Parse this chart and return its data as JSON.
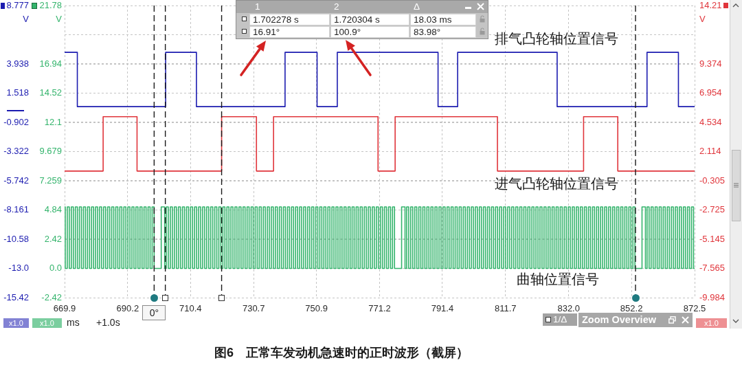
{
  "chart_data": {
    "type": "step",
    "title": "图6　正常车发动机急速时的正时波形（截屏）",
    "xlabel": "ms",
    "ylabel": "V",
    "y2label": "V",
    "y3label": "V",
    "xlim": [
      669.9,
      872.5
    ],
    "xticks": [
      669.9,
      690.2,
      710.4,
      730.7,
      750.9,
      771.2,
      791.4,
      811.7,
      {
        "value": 832.0,
        "label": "832.0"
      },
      852.2,
      872.5
    ],
    "ylim": [
      -15.42,
      8.777
    ],
    "yticks": [
      -15.42,
      {
        "value": -13.0,
        "label": "-13.0"
      },
      -10.58,
      -8.161,
      -5.742,
      -3.322,
      -0.902,
      1.518,
      3.938,
      {
        "value": 6.358,
        "label": null
      },
      8.777
    ],
    "y2lim": [
      -2.42,
      21.78
    ],
    "y2ticks": [
      -2.42,
      {
        "value": 0.0,
        "label": "0.0"
      },
      2.42,
      4.84,
      7.259,
      9.679,
      12.1,
      14.52,
      16.94,
      {
        "value": 19.36,
        "label": null
      },
      21.78
    ],
    "y3lim": [
      -9.984,
      14.21
    ],
    "y3ticks": [
      -9.984,
      -7.565,
      -5.145,
      -2.725,
      -0.305,
      2.114,
      4.534,
      6.954,
      9.374,
      {
        "value": 11.79,
        "label": null
      },
      14.21
    ],
    "grid": true,
    "series": [
      {
        "name": "排气凸轮轴位置信号",
        "color": "#1c1cb0",
        "x": [
          669.9,
          674.0,
          702.4,
          712.3,
          740.8,
          751.1,
          757.6,
          790.0,
          796.3,
          828.3,
          857.2,
          867.3,
          872.5
        ],
        "values": [
          4.9,
          0.4,
          4.9,
          0.4,
          4.9,
          0.4,
          4.9,
          0.4,
          4.9,
          0.4,
          4.9,
          0.4,
          0.4
        ]
      },
      {
        "name": "进气凸轮轴位置信号",
        "color": "#e0353b",
        "axis": "y3",
        "x": [
          669.9,
          682.3,
          693.2,
          720.4,
          731.6,
          737.1,
          770.7,
          776.2,
          809.1,
          836.8,
          847.8,
          872.5
        ],
        "values": [
          0.5,
          5.0,
          0.5,
          5.0,
          0.5,
          5.0,
          0.5,
          5.0,
          0.5,
          5.0,
          0.5,
          0.5
        ]
      },
      {
        "name": "曲轴位置信号",
        "color": "#34b46c",
        "axis": "y2",
        "x": [
          669.9,
          670.12,
          670.77,
          671.42,
          672.07,
          672.72,
          673.37,
          674.02,
          674.67,
          675.32,
          675.97,
          676.62,
          677.27,
          677.92,
          678.57,
          679.22,
          679.86,
          680.51,
          681.16,
          681.81,
          682.46,
          683.11,
          683.76,
          684.41,
          685.06,
          685.71,
          686.36,
          687.01,
          687.66,
          688.31,
          688.96,
          689.61,
          690.26,
          690.91,
          691.56,
          692.21,
          692.85,
          693.5,
          694.15,
          694.8,
          695.45,
          696.1,
          696.75,
          697.4,
          698.05,
          698.7,
          700.98,
          702.08,
          702.61,
          703.26,
          703.91,
          704.56,
          705.21,
          705.86,
          706.51,
          707.16,
          707.81,
          708.46,
          709.11,
          709.76,
          710.4,
          711.05,
          711.7,
          712.35,
          713.0,
          713.65,
          714.3,
          714.95,
          715.6,
          716.25,
          716.9,
          717.55,
          718.2,
          718.85,
          719.5,
          720.15,
          720.8,
          721.45,
          722.1,
          722.75,
          723.39,
          724.04,
          724.69,
          725.34,
          725.99,
          726.64,
          727.29,
          727.94,
          728.59,
          729.24,
          729.89,
          730.54,
          731.19,
          731.84,
          732.49,
          733.14,
          733.79,
          734.44,
          735.09,
          735.74,
          736.38,
          737.03,
          737.68,
          738.33,
          738.98,
          739.63,
          740.28,
          740.93,
          741.58,
          742.23,
          742.88,
          743.53,
          744.18,
          744.83,
          745.48,
          746.13,
          746.78,
          747.43,
          748.08,
          748.73,
          749.37,
          750.02,
          750.67,
          751.32,
          751.97,
          752.62,
          753.27,
          753.92,
          754.57,
          755.22,
          755.87,
          756.52,
          757.17,
          757.82,
          758.47,
          759.12,
          759.77,
          760.42,
          761.07,
          761.72,
          762.36,
          763.01,
          763.66,
          764.31,
          764.96,
          765.61,
          766.26,
          766.91,
          767.56,
          768.21,
          768.86,
          769.51,
          770.16,
          770.81,
          771.46,
          772.11,
          772.76,
          773.41,
          774.06,
          774.71,
          775.35,
          776.0,
          778.28,
          779.38,
          779.91,
          780.56,
          781.21,
          781.86,
          782.51,
          783.16,
          783.81,
          784.46,
          785.11,
          785.76,
          786.41,
          787.06,
          787.71,
          788.36,
          789.01,
          789.66,
          790.31,
          790.96,
          791.61,
          792.26,
          792.9,
          793.55,
          794.2,
          794.85,
          795.5,
          796.15,
          796.8,
          797.45,
          798.1,
          798.75,
          799.4,
          800.05,
          800.7,
          801.35,
          802.0,
          802.65,
          803.3,
          803.95,
          804.6,
          805.25,
          805.89,
          806.54,
          807.19,
          807.84,
          808.49,
          809.14,
          809.79,
          810.44,
          811.09,
          811.74,
          812.39,
          813.04,
          813.69,
          814.34,
          814.99,
          815.64,
          816.29,
          816.94,
          817.59,
          818.24,
          818.88,
          819.53,
          820.18,
          820.83,
          821.48,
          822.13,
          822.78,
          823.43,
          824.08,
          824.73,
          825.38,
          826.03,
          826.68,
          827.33,
          827.98,
          828.63,
          829.28,
          829.93,
          830.58,
          831.23,
          831.87,
          832.52,
          833.17,
          833.82,
          834.47,
          835.12,
          835.77,
          836.42,
          837.07,
          837.72,
          838.37,
          839.02,
          839.67,
          840.32,
          840.97,
          841.62,
          842.27,
          842.92,
          843.57,
          844.22,
          844.86,
          845.51,
          846.16,
          846.81,
          847.46,
          848.11,
          848.76,
          849.41,
          850.06,
          850.71,
          851.36,
          852.01,
          852.66,
          853.31,
          855.59,
          856.69,
          857.22,
          857.87,
          858.52,
          859.17,
          859.82,
          860.47,
          861.12,
          861.77,
          862.41,
          863.06,
          863.71,
          864.36,
          865.01,
          865.66,
          866.31,
          866.96,
          867.61,
          868.26,
          868.91,
          869.56,
          870.21,
          870.86,
          871.51,
          872.16,
          872.5
        ],
        "values": [
          5.1,
          0,
          5.1,
          0,
          5.1,
          0,
          5.1,
          0,
          5.1,
          0,
          5.1,
          0,
          5.1,
          0,
          5.1,
          0,
          5.1,
          0,
          5.1,
          0,
          5.1,
          0,
          5.1,
          0,
          5.1,
          0,
          5.1,
          0,
          5.1,
          0,
          5.1,
          0,
          5.1,
          0,
          5.1,
          0,
          5.1,
          0,
          5.1,
          0,
          5.1,
          0,
          5.1,
          0,
          5.1,
          0,
          5.1,
          0,
          5.1,
          0,
          5.1,
          0,
          5.1,
          0,
          5.1,
          0,
          5.1,
          0,
          5.1,
          0,
          5.1,
          0,
          5.1,
          0,
          5.1,
          0,
          5.1,
          0,
          5.1,
          0,
          5.1,
          0,
          5.1,
          0,
          5.1,
          0,
          5.1,
          0,
          5.1,
          0,
          5.1,
          0,
          5.1,
          0,
          5.1,
          0,
          5.1,
          0,
          5.1,
          0,
          5.1,
          0,
          5.1,
          0,
          5.1,
          0,
          5.1,
          0,
          5.1,
          0,
          5.1,
          0,
          5.1,
          0,
          5.1,
          0,
          5.1,
          0,
          5.1,
          0,
          5.1,
          0,
          5.1,
          0,
          5.1,
          0,
          5.1,
          0,
          5.1,
          0,
          5.1,
          0,
          5.1,
          0,
          5.1,
          0,
          5.1,
          0,
          5.1,
          0,
          5.1,
          0,
          5.1,
          0,
          5.1,
          0,
          5.1,
          0,
          5.1,
          0,
          5.1,
          0,
          5.1,
          0,
          5.1,
          0,
          5.1,
          0,
          5.1,
          0,
          5.1,
          0,
          5.1,
          0,
          5.1,
          0,
          5.1,
          0,
          5.1,
          0,
          5.1,
          0,
          5.1,
          0,
          5.1,
          0,
          5.1,
          0,
          5.1,
          0,
          5.1,
          0,
          5.1,
          0,
          5.1,
          0,
          5.1,
          0,
          5.1,
          0,
          5.1,
          0,
          5.1,
          0,
          5.1,
          0,
          5.1,
          0,
          5.1,
          0,
          5.1,
          0,
          5.1,
          0,
          5.1,
          0,
          5.1,
          0,
          5.1,
          0,
          5.1,
          0,
          5.1,
          0,
          5.1,
          0,
          5.1,
          0,
          5.1,
          0,
          5.1,
          0,
          5.1,
          0,
          5.1,
          0,
          5.1,
          0,
          5.1,
          0,
          5.1,
          0,
          5.1,
          0,
          5.1,
          0,
          5.1,
          0,
          5.1,
          0,
          5.1,
          0,
          5.1,
          0,
          5.1,
          0,
          5.1,
          0,
          5.1,
          0,
          5.1,
          0,
          5.1,
          0,
          5.1,
          0,
          5.1,
          0,
          5.1,
          0,
          5.1,
          0,
          5.1,
          0,
          5.1,
          0,
          5.1,
          0,
          5.1,
          0,
          5.1,
          0,
          5.1,
          0,
          5.1,
          0,
          5.1,
          0,
          5.1,
          0,
          5.1,
          0,
          5.1,
          0,
          5.1,
          0,
          5.1,
          0,
          5.1,
          0,
          5.1,
          0,
          5.1,
          0,
          5.1,
          0,
          5.1,
          0,
          5.1,
          0,
          5.1,
          0,
          5.1,
          0,
          5.1,
          0,
          5.1,
          0,
          5.1,
          0,
          5.1,
          0,
          5.1,
          0,
          0
        ]
      }
    ],
    "ref_lines": [
      {
        "axis": "x",
        "value": 698.7,
        "color": "#1a1a1a",
        "line_style": "dashed"
      },
      {
        "axis": "x",
        "value": 702.3,
        "color": "#1a1a1a",
        "line_style": "dashed"
      },
      {
        "axis": "x",
        "value": 720.4,
        "color": "#1a1a1a",
        "line_style": "dashed"
      },
      {
        "axis": "x",
        "value": 853.5,
        "color": "#1a1a1a",
        "line_style": "dashed"
      }
    ],
    "annotations": [
      "1",
      "2",
      "Δ",
      "1.702278 s",
      "1.720304 s",
      "18.03 ms",
      "16.91°",
      "100.9°",
      "83.98°",
      "x1.0",
      "x1.0",
      "+1.0s",
      "1/Δ",
      "Zoom Overview",
      "x1.0",
      "0°"
    ]
  }
}
